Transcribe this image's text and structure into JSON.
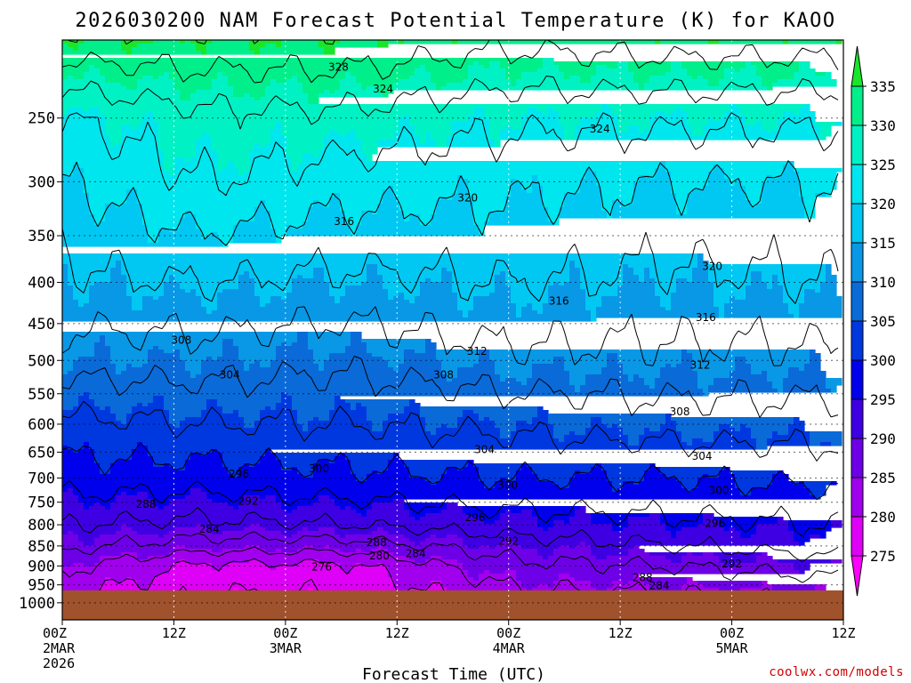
{
  "chart_data": {
    "type": "heatmap",
    "title": "2026030200 NAM Forecast Potential Temperature (K) for KAOO",
    "xlabel": "Forecast Time (UTC)",
    "ylabel": "",
    "credit": "coolwx.com/models",
    "x_hours_range": [
      0,
      84
    ],
    "x_ticks": [
      {
        "hour": 0,
        "lines": [
          "00Z",
          "2MAR",
          "2026"
        ]
      },
      {
        "hour": 12,
        "lines": [
          "12Z"
        ]
      },
      {
        "hour": 24,
        "lines": [
          "00Z",
          "3MAR"
        ]
      },
      {
        "hour": 36,
        "lines": [
          "12Z"
        ]
      },
      {
        "hour": 48,
        "lines": [
          "00Z",
          "4MAR"
        ]
      },
      {
        "hour": 60,
        "lines": [
          "12Z"
        ]
      },
      {
        "hour": 72,
        "lines": [
          "00Z",
          "5MAR"
        ]
      },
      {
        "hour": 84,
        "lines": [
          "12Z"
        ]
      }
    ],
    "y_pressure_range_hpa": [
      1050,
      200
    ],
    "y_ticks": [
      250,
      300,
      350,
      400,
      450,
      500,
      550,
      600,
      650,
      700,
      750,
      800,
      850,
      900,
      950,
      1000
    ],
    "colorbar": {
      "levels": [
        270,
        275,
        280,
        285,
        290,
        295,
        300,
        305,
        310,
        315,
        320,
        325,
        330,
        335,
        340
      ],
      "tick_labels": [
        275,
        280,
        285,
        290,
        295,
        300,
        305,
        310,
        315,
        320,
        325,
        330,
        335
      ],
      "colors": [
        "#ff00ff",
        "#df00f7",
        "#a000ee",
        "#6e00e8",
        "#3e00e2",
        "#0000ec",
        "#0038e0",
        "#0a6ad8",
        "#0898e6",
        "#00c8f2",
        "#00e6ee",
        "#00f2c4",
        "#00ef8a",
        "#19e62a"
      ]
    },
    "theta_profiles": [
      {
        "hour": 0,
        "theta": [
          [
            975,
            281
          ],
          [
            900,
            285
          ],
          [
            850,
            289
          ],
          [
            800,
            292
          ],
          [
            700,
            298
          ],
          [
            600,
            303
          ],
          [
            500,
            310
          ],
          [
            400,
            315
          ],
          [
            300,
            320
          ],
          [
            250,
            324
          ],
          [
            200,
            335
          ]
        ]
      },
      {
        "hour": 15,
        "theta": [
          [
            975,
            276
          ],
          [
            900,
            279
          ],
          [
            850,
            286
          ],
          [
            800,
            291
          ],
          [
            700,
            298
          ],
          [
            600,
            304
          ],
          [
            500,
            310
          ],
          [
            400,
            316
          ],
          [
            300,
            324
          ],
          [
            250,
            327
          ],
          [
            200,
            335
          ]
        ]
      },
      {
        "hour": 30,
        "theta": [
          [
            975,
            276
          ],
          [
            900,
            279
          ],
          [
            850,
            286
          ],
          [
            800,
            292
          ],
          [
            700,
            299
          ],
          [
            600,
            304
          ],
          [
            500,
            309
          ],
          [
            400,
            315
          ],
          [
            300,
            322
          ],
          [
            250,
            327
          ],
          [
            200,
            335
          ]
        ]
      },
      {
        "hour": 48,
        "theta": [
          [
            975,
            283
          ],
          [
            900,
            287
          ],
          [
            850,
            290
          ],
          [
            800,
            294
          ],
          [
            700,
            300
          ],
          [
            600,
            305
          ],
          [
            500,
            311
          ],
          [
            400,
            316
          ],
          [
            300,
            321
          ],
          [
            250,
            325
          ],
          [
            200,
            333
          ]
        ]
      },
      {
        "hour": 66,
        "theta": [
          [
            975,
            284
          ],
          [
            900,
            288
          ],
          [
            850,
            292
          ],
          [
            800,
            295
          ],
          [
            700,
            300
          ],
          [
            600,
            306
          ],
          [
            500,
            311
          ],
          [
            400,
            315
          ],
          [
            300,
            320
          ],
          [
            250,
            325
          ],
          [
            200,
            334
          ]
        ]
      },
      {
        "hour": 84,
        "theta": [
          [
            975,
            285
          ],
          [
            900,
            290
          ],
          [
            850,
            294
          ],
          [
            800,
            296
          ],
          [
            700,
            301
          ],
          [
            600,
            306
          ],
          [
            500,
            311
          ],
          [
            400,
            316
          ],
          [
            300,
            320
          ],
          [
            250,
            325
          ],
          [
            200,
            334
          ]
        ]
      }
    ],
    "contour_labels": [
      {
        "text": "328",
        "hour": 29.7,
        "p": 216
      },
      {
        "text": "324",
        "hour": 34.5,
        "p": 230
      },
      {
        "text": "324",
        "hour": 57.8,
        "p": 258
      },
      {
        "text": "320",
        "hour": 43.6,
        "p": 314
      },
      {
        "text": "320",
        "hour": 69.9,
        "p": 382
      },
      {
        "text": "316",
        "hour": 30.3,
        "p": 336
      },
      {
        "text": "316",
        "hour": 53.4,
        "p": 422
      },
      {
        "text": "316",
        "hour": 69.2,
        "p": 442
      },
      {
        "text": "312",
        "hour": 44.6,
        "p": 487
      },
      {
        "text": "312",
        "hour": 68.6,
        "p": 507
      },
      {
        "text": "308",
        "hour": 12.8,
        "p": 472
      },
      {
        "text": "308",
        "hour": 41.0,
        "p": 521
      },
      {
        "text": "308",
        "hour": 66.4,
        "p": 579
      },
      {
        "text": "304",
        "hour": 18.0,
        "p": 521
      },
      {
        "text": "304",
        "hour": 45.4,
        "p": 645
      },
      {
        "text": "304",
        "hour": 68.8,
        "p": 658
      },
      {
        "text": "300",
        "hour": 27.6,
        "p": 681
      },
      {
        "text": "300",
        "hour": 47.9,
        "p": 714
      },
      {
        "text": "300",
        "hour": 70.6,
        "p": 725
      },
      {
        "text": "296",
        "hour": 19.0,
        "p": 692
      },
      {
        "text": "296",
        "hour": 44.4,
        "p": 784
      },
      {
        "text": "296",
        "hour": 70.2,
        "p": 797
      },
      {
        "text": "292",
        "hour": 20.0,
        "p": 748
      },
      {
        "text": "292",
        "hour": 48.0,
        "p": 838
      },
      {
        "text": "292",
        "hour": 72.0,
        "p": 895
      },
      {
        "text": "288",
        "hour": 9.0,
        "p": 754
      },
      {
        "text": "288",
        "hour": 33.8,
        "p": 842
      },
      {
        "text": "288",
        "hour": 62.4,
        "p": 930
      },
      {
        "text": "284",
        "hour": 15.8,
        "p": 810
      },
      {
        "text": "284",
        "hour": 38.0,
        "p": 869
      },
      {
        "text": "284",
        "hour": 64.2,
        "p": 952
      },
      {
        "text": "280",
        "hour": 34.1,
        "p": 874
      },
      {
        "text": "276",
        "hour": 27.9,
        "p": 903
      }
    ],
    "ground_pressure_hpa": 965
  }
}
